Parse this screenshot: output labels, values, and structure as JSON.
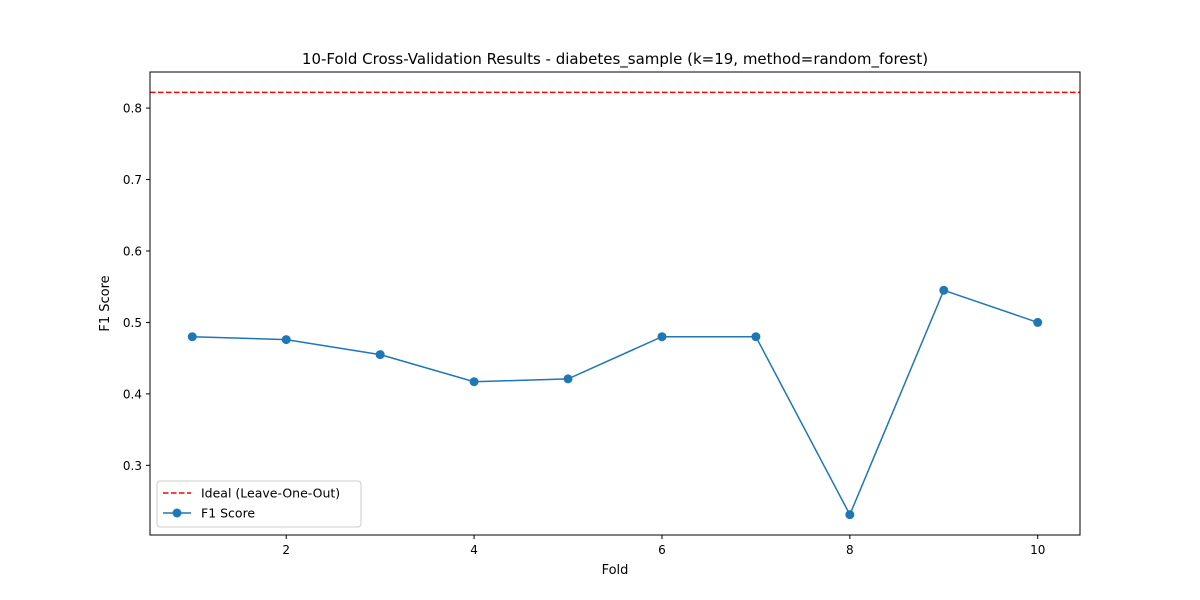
{
  "chart_data": {
    "type": "line",
    "title": "10-Fold Cross-Validation Results - diabetes_sample (k=19, method=random_forest)",
    "xlabel": "Fold",
    "ylabel": "F1 Score",
    "xlim": [
      0.55,
      10.45
    ],
    "ylim": [
      0.2025,
      0.8505
    ],
    "xticks": [
      2,
      4,
      6,
      8,
      10
    ],
    "yticks": [
      0.3,
      0.4,
      0.5,
      0.6,
      0.7,
      0.8
    ],
    "xtick_labels": [
      "2",
      "4",
      "6",
      "8",
      "10"
    ],
    "ytick_labels": [
      "0.3",
      "0.4",
      "0.5",
      "0.6",
      "0.7",
      "0.8"
    ],
    "grid": false,
    "legend_position": "lower-left",
    "series": [
      {
        "name": "F1 Score",
        "color": "#1f77b4",
        "marker": "circle",
        "x": [
          1,
          2,
          3,
          4,
          5,
          6,
          7,
          8,
          9,
          10
        ],
        "values": [
          0.48,
          0.476,
          0.455,
          0.417,
          0.421,
          0.48,
          0.48,
          0.231,
          0.545,
          0.5
        ]
      }
    ],
    "reference_line": {
      "name": "Ideal (Leave-One-Out)",
      "y": 0.822,
      "color": "#ff0000",
      "style": "dashed"
    }
  }
}
